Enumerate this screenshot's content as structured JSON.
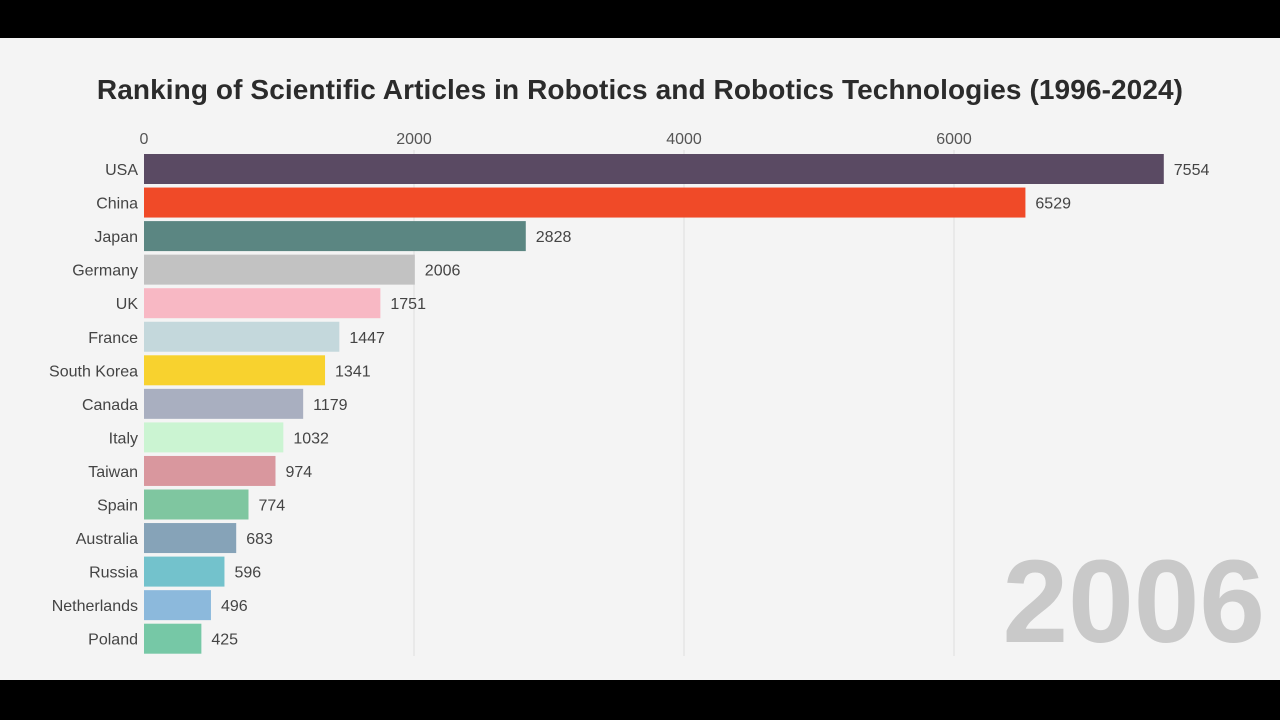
{
  "chart_data": {
    "type": "bar",
    "orientation": "horizontal",
    "title": "Ranking of Scientific Articles in Robotics and Robotics Technologies (1996-2024)",
    "year_label": "2006",
    "xlim": [
      0,
      7800
    ],
    "xticks": [
      0,
      2000,
      4000,
      6000
    ],
    "x_axis_position": "top",
    "grid": true,
    "categories": [
      "USA",
      "China",
      "Japan",
      "Germany",
      "UK",
      "France",
      "South Korea",
      "Canada",
      "Italy",
      "Taiwan",
      "Spain",
      "Australia",
      "Russia",
      "Netherlands",
      "Poland"
    ],
    "values": [
      7554,
      6529,
      2828,
      2006,
      1751,
      1447,
      1341,
      1179,
      1032,
      974,
      774,
      683,
      596,
      496,
      425
    ],
    "colors": [
      "#5a4a63",
      "#f04a28",
      "#5b8682",
      "#c2c2c2",
      "#f8b8c4",
      "#c4d8dc",
      "#f8d22e",
      "#a9afc0",
      "#cbf4d2",
      "#d9979e",
      "#7fc6a0",
      "#86a3b8",
      "#73c2cc",
      "#8cb9dc",
      "#76c8a6"
    ]
  }
}
